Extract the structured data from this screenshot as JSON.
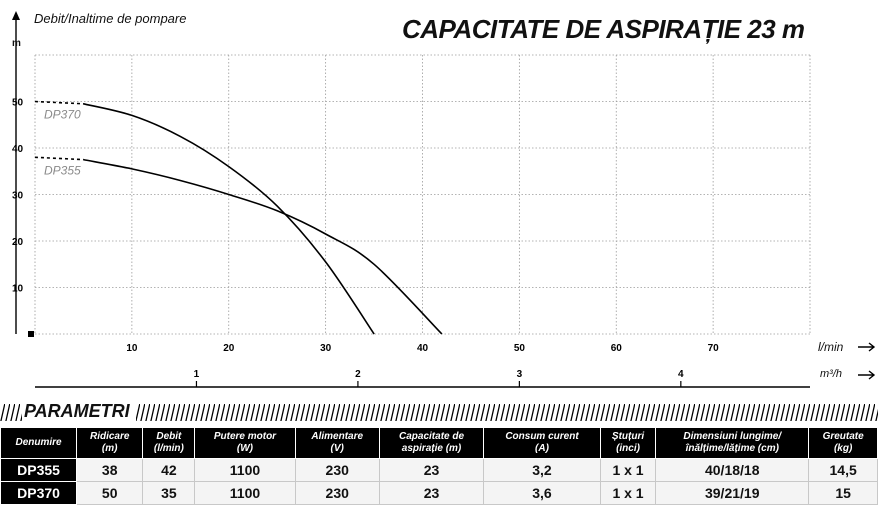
{
  "chart_data": {
    "type": "line",
    "title": "CAPACITATE DE ASPIRAȚIE 23 m",
    "ylabel": "Debit/Inaltime de pompare",
    "yunit": "m",
    "xlabel": "l/min",
    "x2label": "m³/h",
    "xlim": [
      0,
      80
    ],
    "ylim": [
      0,
      60
    ],
    "xticks": [
      "10",
      "20",
      "30",
      "40",
      "50",
      "60",
      "70"
    ],
    "yticks": [
      "10",
      "20",
      "30",
      "40",
      "50"
    ],
    "x2ticks": [
      "1",
      "2",
      "3",
      "4"
    ],
    "grid": true,
    "series": [
      {
        "name": "DP370",
        "x": [
          0,
          5,
          10,
          15,
          20,
          25,
          30,
          35
        ],
        "y": [
          50,
          49.5,
          47,
          42.5,
          36,
          27.5,
          15.5,
          0
        ],
        "dashed_until_x": 5
      },
      {
        "name": "DP355",
        "x": [
          0,
          5,
          10,
          15,
          20,
          25,
          30,
          35,
          42
        ],
        "y": [
          38,
          37.5,
          35.5,
          33,
          30,
          26.5,
          21.5,
          15,
          0
        ],
        "dashed_until_x": 5
      }
    ]
  },
  "params": {
    "title": "PARAMETRI",
    "headers": [
      [
        "Denumire"
      ],
      [
        "Ridicare",
        "(m)"
      ],
      [
        "Debit",
        "(l/min)"
      ],
      [
        "Putere motor",
        "(W)"
      ],
      [
        "Alimentare",
        "(V)"
      ],
      [
        "Capacitate de",
        "aspirație (m)"
      ],
      [
        "Consum curent",
        "(A)"
      ],
      [
        "Ștuțuri",
        "(inci)"
      ],
      [
        "Dimensiuni lungime/",
        "înălțime/lățime (cm)"
      ],
      [
        "Greutate",
        "(kg)"
      ]
    ],
    "rows": [
      [
        "DP355",
        "38",
        "42",
        "1100",
        "230",
        "23",
        "3,2",
        "1 x 1",
        "40/18/18",
        "14,5"
      ],
      [
        "DP370",
        "50",
        "35",
        "1100",
        "230",
        "23",
        "3,6",
        "1 x 1",
        "39/21/19",
        "15"
      ]
    ]
  }
}
